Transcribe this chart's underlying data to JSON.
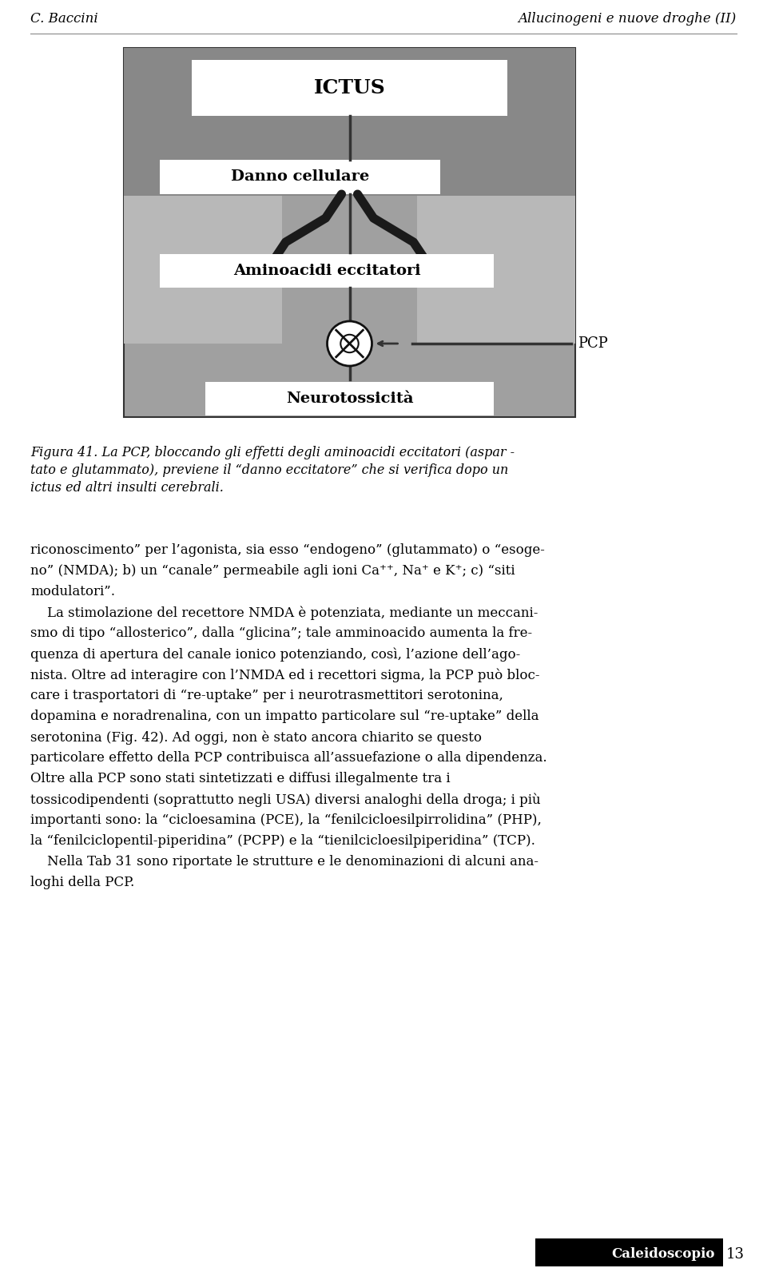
{
  "page_bg": "#ffffff",
  "header_left": "C. Baccini",
  "header_right": "Allucinogeni e nuove droghe (II)",
  "header_fontsize": 12,
  "header_color": "#000000",
  "caption_lines": [
    "Figura 41. La PCP, bloccando gli effetti degli aminoacidi eccitatori (aspar -",
    "tato e glutammato), previene il “danno eccitatore” che si verifica dopo un",
    "ictus ed altri insulti cerebrali."
  ],
  "body_text": [
    [
      "riconoscimento” per l’agonista, sia esso “endogeno” (glutammato) o “esoge-",
      false
    ],
    [
      "no” (NMDA); b) un “canale” permeabile agli ioni Ca⁺⁺, Na⁺ e K⁺; c) “siti",
      false
    ],
    [
      "modulatori”.",
      false
    ],
    [
      "    La stimolazione del recettore NMDA è potenziata, mediante un meccani-",
      false
    ],
    [
      "smo di tipo “allosterico”, dalla “glicina”; tale amminoacido aumenta la fre-",
      false
    ],
    [
      "quenza di apertura del canale ionico potenziando, così, l’azione dell’ago-",
      false
    ],
    [
      "nista. Oltre ad interagire con l’NMDA ed i recettori sigma, la PCP può bloc-",
      false
    ],
    [
      "care i trasportatori di “re-uptake” per i neurotrasmettitori serotonina,",
      false
    ],
    [
      "dopamina e noradrenalina, con un impatto particolare sul “re-uptake” della",
      false
    ],
    [
      "serotonina (Fig. 42). Ad oggi, non è stato ancora chiarito se questo",
      false
    ],
    [
      "particolare effetto della PCP contribuisca all’assuefazione o alla dipendenza.",
      false
    ],
    [
      "Oltre alla PCP sono stati sintetizzati e diffusi illegalmente tra i",
      false
    ],
    [
      "tossicodipendenti (soprattutto negli USA) diversi analoghi della droga; i più",
      false
    ],
    [
      "importanti sono: la “cicloesamina (PCE), la “fenilcicloesilpirrolidina” (PHP),",
      false
    ],
    [
      "la “fenilciclopentil-piperidina” (PCPP) e la “tienilcicloesilpiperidina” (TCP).",
      false
    ],
    [
      "    Nella Tab 31 sono riportate le strutture e le denominazioni di alcuni ana-",
      false
    ],
    [
      "loghi della PCP.",
      false
    ]
  ],
  "footer_label": "Caleidoscopio",
  "footer_page": "13"
}
